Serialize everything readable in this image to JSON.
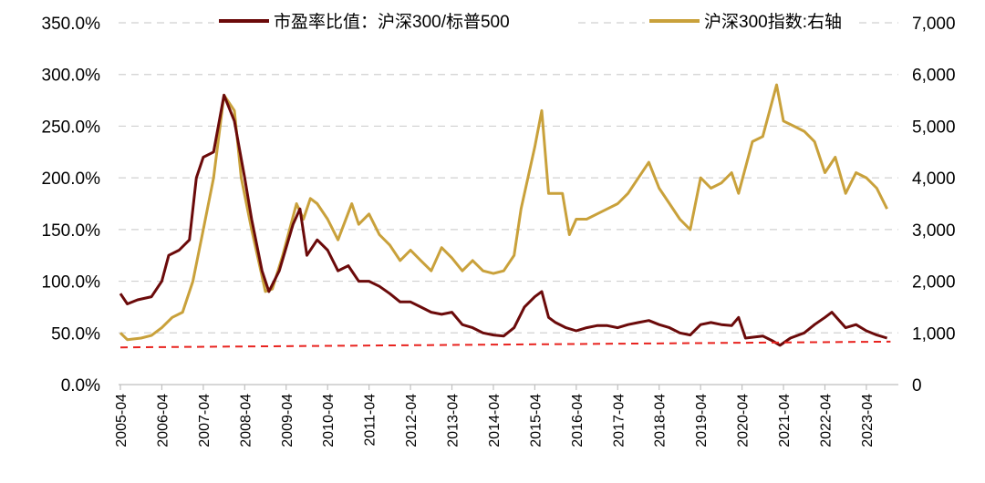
{
  "chart_data": {
    "type": "line",
    "title": "",
    "legend": [
      {
        "label": "市盈率比值：沪深300/标普500",
        "color": "#6b0a0a",
        "axis": "left"
      },
      {
        "label": "沪深300指数:右轴",
        "color": "#c9a13b",
        "axis": "right"
      }
    ],
    "legend_placement": "top",
    "y_left": {
      "ylim": [
        0,
        350
      ],
      "ticks": [
        "0.0%",
        "50.0%",
        "100.0%",
        "150.0%",
        "200.0%",
        "250.0%",
        "300.0%",
        "350.0%"
      ]
    },
    "y_right": {
      "ylim": [
        0,
        7000
      ],
      "ticks": [
        "0",
        "1,000",
        "2,000",
        "3,000",
        "4,000",
        "5,000",
        "6,000",
        "7,000"
      ]
    },
    "x_ticks": [
      "2005-04",
      "2006-04",
      "2007-04",
      "2008-04",
      "2009-04",
      "2010-04",
      "2011-04",
      "2012-04",
      "2013-04",
      "2014-04",
      "2015-04",
      "2016-04",
      "2017-04",
      "2018-04",
      "2019-04",
      "2020-04",
      "2021-04",
      "2022-04",
      "2023-04"
    ],
    "grid": "horizontal dashed",
    "series": [
      {
        "name": "市盈率比值：沪深300/标普500",
        "axis": "left",
        "color": "#6b0a0a",
        "points": [
          [
            "2005-04",
            88
          ],
          [
            "2005-06",
            78
          ],
          [
            "2005-09",
            82
          ],
          [
            "2006-01",
            85
          ],
          [
            "2006-04",
            100
          ],
          [
            "2006-06",
            125
          ],
          [
            "2006-09",
            130
          ],
          [
            "2006-12",
            140
          ],
          [
            "2007-02",
            200
          ],
          [
            "2007-04",
            220
          ],
          [
            "2007-07",
            225
          ],
          [
            "2007-10",
            280
          ],
          [
            "2008-01",
            255
          ],
          [
            "2008-04",
            200
          ],
          [
            "2008-06",
            160
          ],
          [
            "2008-09",
            110
          ],
          [
            "2008-11",
            90
          ],
          [
            "2009-02",
            110
          ],
          [
            "2009-06",
            155
          ],
          [
            "2009-08",
            170
          ],
          [
            "2009-10",
            125
          ],
          [
            "2010-01",
            140
          ],
          [
            "2010-04",
            130
          ],
          [
            "2010-07",
            110
          ],
          [
            "2010-10",
            115
          ],
          [
            "2011-01",
            100
          ],
          [
            "2011-04",
            100
          ],
          [
            "2011-07",
            95
          ],
          [
            "2011-10",
            88
          ],
          [
            "2012-01",
            80
          ],
          [
            "2012-04",
            80
          ],
          [
            "2012-07",
            75
          ],
          [
            "2012-10",
            70
          ],
          [
            "2013-01",
            68
          ],
          [
            "2013-04",
            70
          ],
          [
            "2013-07",
            58
          ],
          [
            "2013-10",
            55
          ],
          [
            "2014-01",
            50
          ],
          [
            "2014-04",
            48
          ],
          [
            "2014-07",
            47
          ],
          [
            "2014-10",
            55
          ],
          [
            "2015-01",
            75
          ],
          [
            "2015-04",
            85
          ],
          [
            "2015-06",
            90
          ],
          [
            "2015-08",
            65
          ],
          [
            "2015-10",
            60
          ],
          [
            "2016-01",
            55
          ],
          [
            "2016-04",
            52
          ],
          [
            "2016-07",
            55
          ],
          [
            "2016-10",
            57
          ],
          [
            "2017-01",
            57
          ],
          [
            "2017-04",
            55
          ],
          [
            "2017-07",
            58
          ],
          [
            "2017-10",
            60
          ],
          [
            "2018-01",
            62
          ],
          [
            "2018-04",
            58
          ],
          [
            "2018-07",
            55
          ],
          [
            "2018-10",
            50
          ],
          [
            "2019-01",
            48
          ],
          [
            "2019-04",
            58
          ],
          [
            "2019-07",
            60
          ],
          [
            "2019-10",
            58
          ],
          [
            "2020-01",
            57
          ],
          [
            "2020-03",
            65
          ],
          [
            "2020-05",
            45
          ],
          [
            "2020-10",
            47
          ],
          [
            "2021-01",
            42
          ],
          [
            "2021-03",
            38
          ],
          [
            "2021-06",
            45
          ],
          [
            "2021-10",
            50
          ],
          [
            "2022-01",
            58
          ],
          [
            "2022-04",
            65
          ],
          [
            "2022-06",
            70
          ],
          [
            "2022-10",
            55
          ],
          [
            "2023-01",
            58
          ],
          [
            "2023-04",
            52
          ],
          [
            "2023-07",
            48
          ],
          [
            "2023-10",
            45
          ]
        ]
      },
      {
        "name": "沪深300指数:右轴",
        "axis": "right",
        "color": "#c9a13b",
        "points": [
          [
            "2005-04",
            1000
          ],
          [
            "2005-06",
            870
          ],
          [
            "2005-10",
            900
          ],
          [
            "2006-01",
            950
          ],
          [
            "2006-04",
            1100
          ],
          [
            "2006-07",
            1300
          ],
          [
            "2006-10",
            1400
          ],
          [
            "2007-01",
            2000
          ],
          [
            "2007-04",
            3000
          ],
          [
            "2007-07",
            4000
          ],
          [
            "2007-10",
            5600
          ],
          [
            "2008-01",
            5300
          ],
          [
            "2008-03",
            4000
          ],
          [
            "2008-06",
            3000
          ],
          [
            "2008-10",
            1800
          ],
          [
            "2008-12",
            1850
          ],
          [
            "2009-03",
            2500
          ],
          [
            "2009-07",
            3500
          ],
          [
            "2009-09",
            3200
          ],
          [
            "2009-11",
            3600
          ],
          [
            "2010-01",
            3500
          ],
          [
            "2010-04",
            3200
          ],
          [
            "2010-07",
            2800
          ],
          [
            "2010-11",
            3500
          ],
          [
            "2011-01",
            3100
          ],
          [
            "2011-04",
            3300
          ],
          [
            "2011-07",
            2900
          ],
          [
            "2011-10",
            2700
          ],
          [
            "2012-01",
            2400
          ],
          [
            "2012-04",
            2600
          ],
          [
            "2012-07",
            2400
          ],
          [
            "2012-10",
            2200
          ],
          [
            "2013-01",
            2650
          ],
          [
            "2013-04",
            2450
          ],
          [
            "2013-07",
            2200
          ],
          [
            "2013-10",
            2400
          ],
          [
            "2014-01",
            2200
          ],
          [
            "2014-04",
            2150
          ],
          [
            "2014-07",
            2200
          ],
          [
            "2014-10",
            2500
          ],
          [
            "2014-12",
            3400
          ],
          [
            "2015-04",
            4600
          ],
          [
            "2015-06",
            5300
          ],
          [
            "2015-08",
            3700
          ],
          [
            "2015-12",
            3700
          ],
          [
            "2016-02",
            2900
          ],
          [
            "2016-04",
            3200
          ],
          [
            "2016-07",
            3200
          ],
          [
            "2016-10",
            3300
          ],
          [
            "2017-01",
            3400
          ],
          [
            "2017-04",
            3500
          ],
          [
            "2017-07",
            3700
          ],
          [
            "2017-10",
            4000
          ],
          [
            "2018-01",
            4300
          ],
          [
            "2018-04",
            3800
          ],
          [
            "2018-07",
            3500
          ],
          [
            "2018-10",
            3200
          ],
          [
            "2019-01",
            3000
          ],
          [
            "2019-04",
            4000
          ],
          [
            "2019-07",
            3800
          ],
          [
            "2019-10",
            3900
          ],
          [
            "2020-01",
            4100
          ],
          [
            "2020-03",
            3700
          ],
          [
            "2020-07",
            4700
          ],
          [
            "2020-10",
            4800
          ],
          [
            "2021-02",
            5800
          ],
          [
            "2021-04",
            5100
          ],
          [
            "2021-07",
            5000
          ],
          [
            "2021-10",
            4900
          ],
          [
            "2022-01",
            4700
          ],
          [
            "2022-04",
            4100
          ],
          [
            "2022-07",
            4400
          ],
          [
            "2022-10",
            3700
          ],
          [
            "2023-01",
            4100
          ],
          [
            "2023-04",
            4000
          ],
          [
            "2023-07",
            3800
          ],
          [
            "2023-10",
            3400
          ]
        ]
      },
      {
        "name": "trend",
        "axis": "left",
        "color": "#e8231f",
        "dashed": true,
        "points": [
          [
            "2005-04",
            36
          ],
          [
            "2023-11",
            41.5
          ]
        ]
      }
    ]
  }
}
